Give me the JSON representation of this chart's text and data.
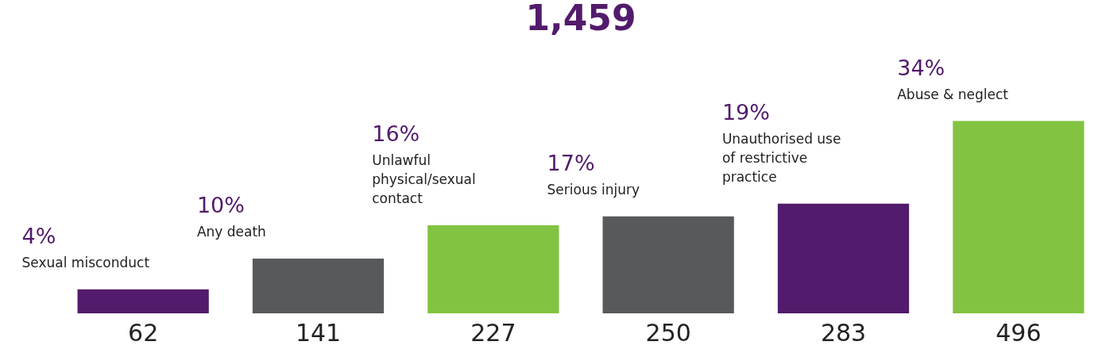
{
  "chart_data": {
    "type": "bar",
    "title": "1,459",
    "categories": [
      "Sexual misconduct",
      "Any death",
      "Unlawful physical/sexual contact",
      "Serious injury",
      "Unauthorised use of restrictive practice",
      "Abuse & neglect"
    ],
    "values": [
      62,
      141,
      227,
      250,
      283,
      496
    ],
    "colors": [
      "#521b6b",
      "#58595b",
      "#82c341",
      "#58595b",
      "#521b6b",
      "#82c341"
    ],
    "data_labels": true,
    "annotations": [
      "4%",
      "10%",
      "16%",
      "17%",
      "19%",
      "34%"
    ]
  }
}
